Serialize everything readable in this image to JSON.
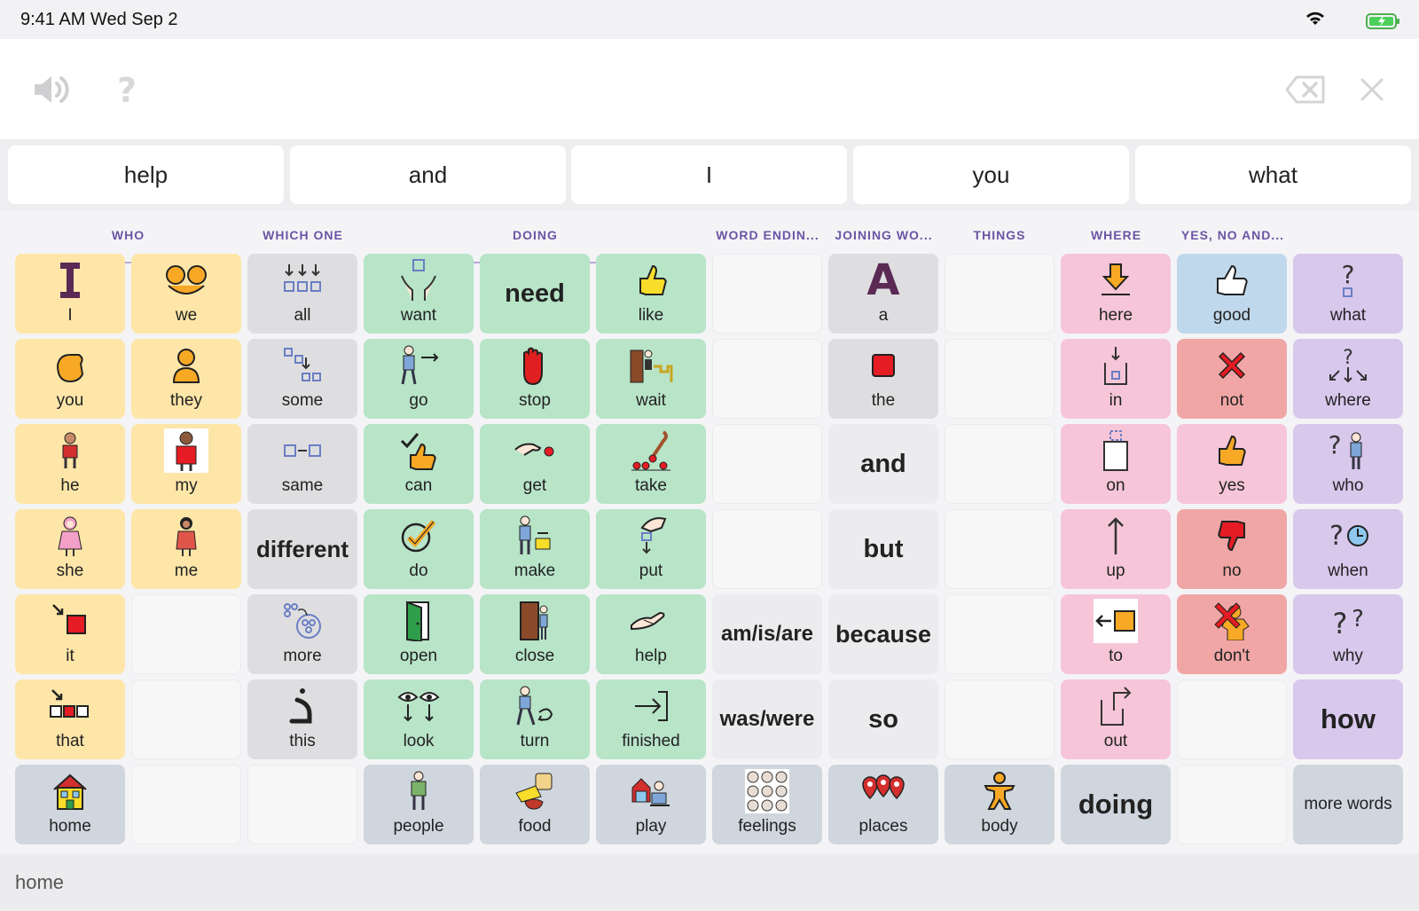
{
  "status_bar": {
    "time": "9:41 AM   Wed Sep 2"
  },
  "message_bar": {
    "speak_icon": "speaker-icon",
    "help_icon": "question-icon",
    "backspace_icon": "backspace-icon",
    "clear_icon": "close-icon"
  },
  "predictions": [
    "help",
    "and",
    "I",
    "you",
    "what"
  ],
  "categories": [
    "WHO",
    "WHICH ONE",
    "DOING",
    "WORD ENDIN...",
    "JOINING WO...",
    "THINGS",
    "WHERE",
    "YES, NO AND..."
  ],
  "cells": {
    "I": "I",
    "we": "we",
    "all": "all",
    "want": "want",
    "need": "need",
    "like": "like",
    "a": "a",
    "A_glyph": "A",
    "here": "here",
    "good": "good",
    "what": "what",
    "you": "you",
    "they": "they",
    "some": "some",
    "go": "go",
    "stop": "stop",
    "wait": "wait",
    "the": "the",
    "in": "in",
    "not": "not",
    "where": "where",
    "he": "he",
    "my": "my",
    "same": "same",
    "can": "can",
    "get": "get",
    "take": "take",
    "and": "and",
    "on": "on",
    "yes": "yes",
    "who": "who",
    "she": "she",
    "me": "me",
    "different": "different",
    "do": "do",
    "make": "make",
    "put": "put",
    "but": "but",
    "up": "up",
    "no": "no",
    "when": "when",
    "it": "it",
    "more": "more",
    "open": "open",
    "close": "close",
    "help": "help",
    "amisare": "am/is/are",
    "because": "because",
    "to": "to",
    "dont": "don't",
    "why": "why",
    "that": "that",
    "this": "this",
    "look": "look",
    "turn": "turn",
    "finished": "finished",
    "waswere": "was/were",
    "so": "so",
    "out": "out",
    "how": "how",
    "home": "home",
    "people": "people",
    "food": "food",
    "play": "play",
    "feelings": "feelings",
    "places": "places",
    "body": "body",
    "doing": "doing",
    "more_words": "more words"
  },
  "footer": {
    "breadcrumb": "home"
  },
  "colors": {
    "who": "#fde6a8",
    "gray": "#dedee0",
    "green": "#b8e4c8",
    "pink": "#f6c6d8",
    "purple": "#d8c8ec",
    "red": "#f1a6a6",
    "blue": "#c0d8ec",
    "nav": "#cfd6dd",
    "category_text": "#6a55a4"
  }
}
